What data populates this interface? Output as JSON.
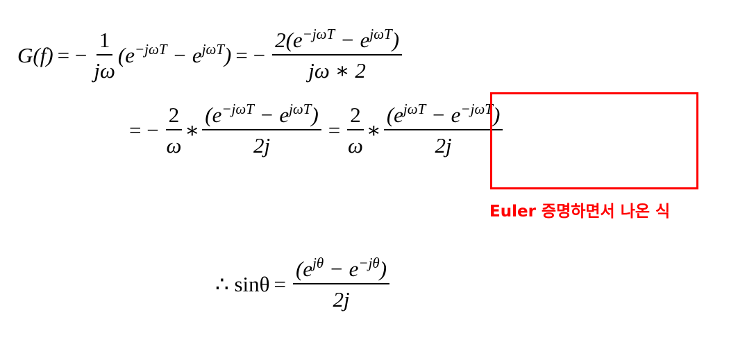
{
  "equations": [
    {
      "lhs": "G(f)",
      "eq_1": "= −",
      "frac_1": {
        "numerator": "1",
        "denominator": "jω"
      },
      "term": [
        "(e",
        "−jωT",
        " − e",
        "jωT",
        ")"
      ],
      "eq_2": "= −",
      "frac_2": {
        "numerator": [
          "2(e",
          "−jωT",
          " − e",
          "jωT",
          ")"
        ],
        "denominator": "jω ∗ 2"
      }
    },
    {
      "eq_1": "= −",
      "frac_1": {
        "numerator": "2",
        "denominator": "ω"
      },
      "star_1": "∗",
      "frac_2": {
        "numerator": [
          "(e",
          "−jωT",
          " − e",
          "jωT",
          ")"
        ],
        "denominator": "2j"
      },
      "eq_2": "=",
      "frac_3": {
        "numerator": "2",
        "denominator": "ω"
      },
      "star_2": "∗",
      "frac_4": {
        "numerator": [
          "(e",
          "jωT",
          " − e",
          "−jωT",
          ")"
        ],
        "denominator": "2j"
      }
    },
    {
      "lhs": "∴ sinθ",
      "eq": "=",
      "frac": {
        "numerator": [
          "(e",
          "jθ",
          " − e",
          "−jθ",
          ")"
        ],
        "denominator": "2j"
      }
    }
  ],
  "annotation": "Euler 증명하면서 나온 식"
}
